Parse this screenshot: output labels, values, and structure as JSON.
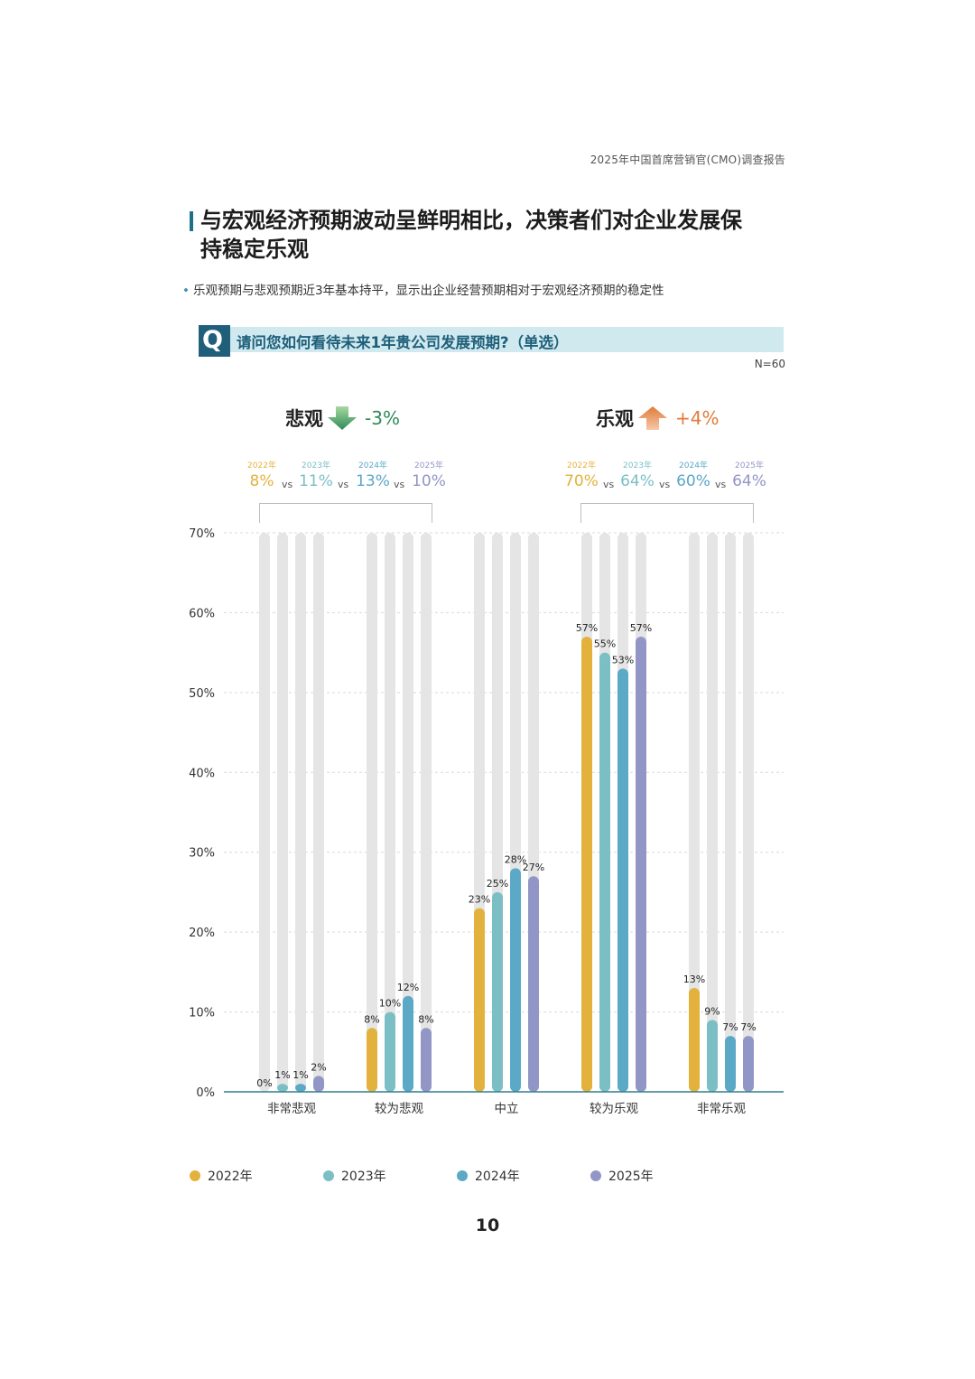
{
  "running_header": "2025年中国首席营销官(CMO)调查报告",
  "title": "与宏观经济预期波动呈鲜明相比，决策者们对企业发展保持稳定乐观",
  "title_lines": [
    "与宏观经济预期波动呈鲜明相比，决策者们对企业发展保",
    "持稳定乐观"
  ],
  "subtitle": "乐观预期与悲观预期近3年基本持平，显示出企业经营预期相对于宏观经济预期的稳定性",
  "question": {
    "badge": "Q",
    "text": "请问您如何看待未来1年贵公司发展预期?（单选）"
  },
  "sample_size": "N=60",
  "pessimistic": {
    "label": "悲观",
    "change": "-3%",
    "arrow": "down-arrow",
    "change_color": "#2e8b57",
    "compare": [
      {
        "year": "2022年",
        "value": "8%"
      },
      {
        "year": "2023年",
        "value": "11%"
      },
      {
        "year": "2024年",
        "value": "13%"
      },
      {
        "year": "2025年",
        "value": "10%"
      }
    ]
  },
  "optimistic": {
    "label": "乐观",
    "change": "+4%",
    "arrow": "up-arrow",
    "change_color": "#e07a3a",
    "compare": [
      {
        "year": "2022年",
        "value": "70%"
      },
      {
        "year": "2023年",
        "value": "64%"
      },
      {
        "year": "2024年",
        "value": "60%"
      },
      {
        "year": "2025年",
        "value": "64%"
      }
    ]
  },
  "vs_label": "vs",
  "chart_data": {
    "type": "bar",
    "categories": [
      "非常悲观",
      "较为悲观",
      "中立",
      "较为乐观",
      "非常乐观"
    ],
    "series": [
      {
        "name": "2022年",
        "color": "#e3b23c",
        "values": [
          0,
          8,
          23,
          57,
          13
        ],
        "labels": [
          "0%",
          "8%",
          "23%",
          "57%",
          "13%"
        ]
      },
      {
        "name": "2023年",
        "color": "#7bbfc4",
        "values": [
          1,
          10,
          25,
          55,
          9
        ],
        "labels": [
          "1%",
          "10%",
          "25%",
          "55%",
          "9%"
        ]
      },
      {
        "name": "2024年",
        "color": "#5ba8c7",
        "values": [
          1,
          12,
          28,
          53,
          7
        ],
        "labels": [
          "1%",
          "12%",
          "28%",
          "53%",
          "7%"
        ]
      },
      {
        "name": "2025年",
        "color": "#9296c6",
        "values": [
          2,
          8,
          27,
          57,
          7
        ],
        "labels": [
          "2%",
          "8%",
          "27%",
          "57%",
          "7%"
        ]
      }
    ],
    "ylim": [
      0,
      70
    ],
    "yticks": [
      "0%",
      "10%",
      "20%",
      "30%",
      "40%",
      "50%",
      "60%",
      "70%"
    ],
    "track_color": "#e5e5e5",
    "grid": true,
    "legend_position": "bottom"
  },
  "page_number": "10"
}
